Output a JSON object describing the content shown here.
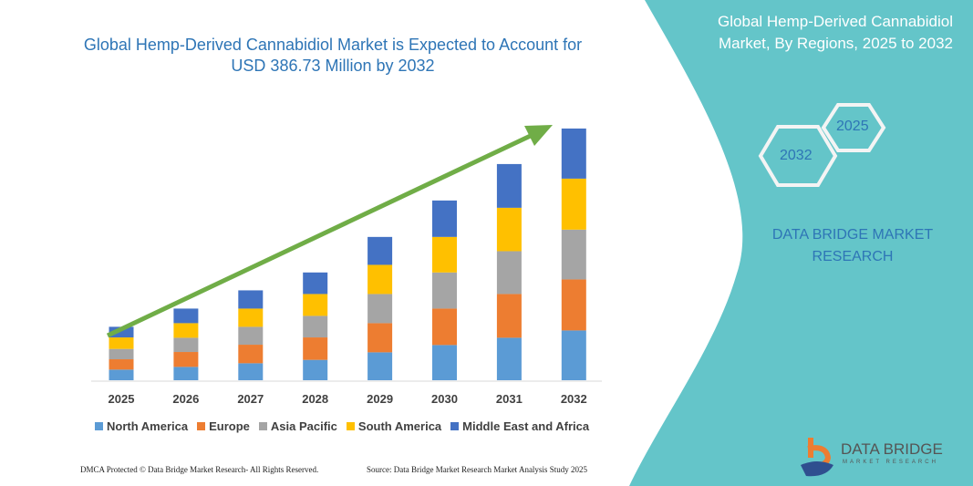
{
  "chart_data": {
    "type": "bar",
    "stacked": true,
    "title": "Global Hemp-Derived Cannabidiol Market is Expected to Account for USD 386.73 Million by 2032",
    "categories": [
      "2025",
      "2026",
      "2027",
      "2028",
      "2029",
      "2030",
      "2031",
      "2032"
    ],
    "series": [
      {
        "name": "North America",
        "color": "#5b9bd5",
        "values": [
          16.3,
          20.5,
          26.1,
          31.3,
          42.9,
          54.1,
          65.3,
          76.5
        ]
      },
      {
        "name": "Europe",
        "color": "#ed7d31",
        "values": [
          15.9,
          22.9,
          28.5,
          34.5,
          44.8,
          56.0,
          67.2,
          78.4
        ]
      },
      {
        "name": "Asia Pacific",
        "color": "#a5a5a5",
        "values": [
          15.9,
          21.9,
          27.5,
          33.1,
          44.8,
          55.5,
          65.8,
          76.5
        ]
      },
      {
        "name": "South America",
        "color": "#ffc000",
        "values": [
          17.7,
          22.4,
          28.0,
          33.6,
          44.8,
          54.6,
          66.7,
          78.4
        ]
      },
      {
        "name": "Middle East and Africa",
        "color": "#4472c4",
        "values": [
          16.3,
          22.4,
          28.0,
          33.1,
          42.9,
          56.0,
          67.2,
          77.0
        ]
      }
    ],
    "ylim": [
      0,
      386.73
    ],
    "grid": false,
    "legend_position": "bottom",
    "trend_arrow_color": "#70ad47"
  },
  "side_panel": {
    "title": "Global Hemp-Derived Cannabidiol Market, By Regions, 2025 to 2032",
    "hex_start": "2025",
    "hex_end": "2032",
    "brand": "DATA BRIDGE MARKET RESEARCH",
    "color": "#64c5c9"
  },
  "logo": {
    "name": "DATA BRIDGE",
    "sub": "MARKET RESEARCH"
  },
  "footer": {
    "left": "DMCA Protected © Data Bridge Market Research- All Rights Reserved.",
    "right": "Source: Data Bridge Market Research Market Analysis Study 2025"
  }
}
